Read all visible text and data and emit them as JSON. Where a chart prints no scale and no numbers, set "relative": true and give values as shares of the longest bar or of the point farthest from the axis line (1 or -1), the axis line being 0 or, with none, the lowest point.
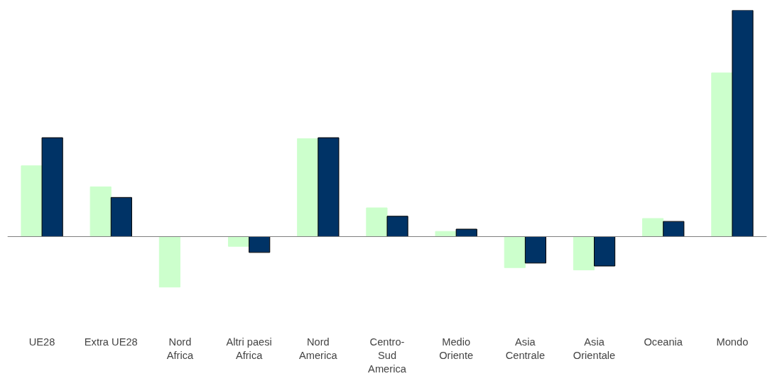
{
  "chart_data": {
    "type": "bar",
    "relative": true,
    "categories": [
      "UE28",
      "Extra UE28",
      "Nord\nAfrica",
      "Altri paesi\nAfrica",
      "Nord\nAmerica",
      "Centro-\nSud\nAmerica",
      "Medio\nOriente",
      "Asia\nCentrale",
      "Asia\nOrientale",
      "Oceania",
      "Mondo"
    ],
    "series": [
      {
        "color": "#ccffcc",
        "values": [
          0.313,
          0.22,
          -0.223,
          -0.043,
          0.433,
          0.127,
          0.023,
          -0.137,
          -0.147,
          0.08,
          0.723
        ]
      },
      {
        "color": "#003366",
        "values": [
          0.437,
          0.173,
          null,
          -0.07,
          0.437,
          0.09,
          0.033,
          -0.117,
          -0.13,
          0.067,
          1.0
        ]
      }
    ],
    "grid": false
  }
}
